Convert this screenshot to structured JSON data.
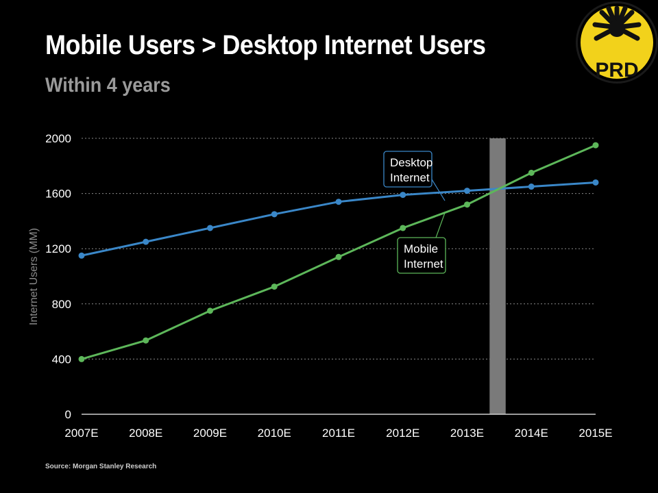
{
  "slide": {
    "title": "Mobile Users > Desktop Internet Users",
    "subtitle": "Within 4 years",
    "source": "Source: Morgan Stanley Research",
    "logo_text": "PRD"
  },
  "colors": {
    "background": "#000000",
    "desktop": "#3a87c8",
    "mobile": "#5db75a",
    "crossover_band": "#7a7a7a",
    "logo_yellow": "#f2d21b"
  },
  "chart_data": {
    "type": "line",
    "ylabel": "Internet Users (MM)",
    "xlabel": "",
    "ylim": [
      0,
      2000
    ],
    "yticks": [
      0,
      400,
      800,
      1200,
      1600,
      2000
    ],
    "grid": true,
    "categories": [
      "2007E",
      "2008E",
      "2009E",
      "2010E",
      "2011E",
      "2012E",
      "2013E",
      "2014E",
      "2015E"
    ],
    "series": [
      {
        "name": "Desktop Internet",
        "label_lines": [
          "Desktop",
          "Internet"
        ],
        "color": "#3a87c8",
        "values": [
          1150,
          1250,
          1350,
          1450,
          1540,
          1590,
          1620,
          1650,
          1680
        ]
      },
      {
        "name": "Mobile Internet",
        "label_lines": [
          "Mobile",
          "Internet"
        ],
        "color": "#5db75a",
        "values": [
          400,
          535,
          750,
          925,
          1140,
          1350,
          1520,
          1750,
          1950
        ]
      }
    ],
    "crossover_band": {
      "x_from": 6.35,
      "x_to": 6.6
    }
  }
}
